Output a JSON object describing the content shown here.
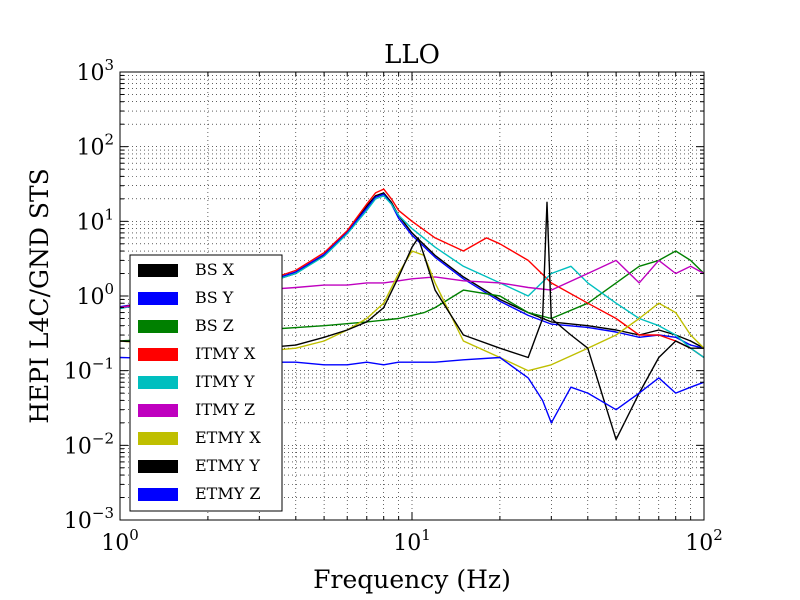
{
  "chart_data": {
    "type": "line",
    "title": "LLO",
    "xlabel": "Frequency (Hz)",
    "ylabel": "HEPI L4C/GND STS",
    "x_scale": "log",
    "y_scale": "log",
    "xlim": [
      1,
      100
    ],
    "ylim": [
      0.001,
      1000
    ],
    "x_ticks": [
      {
        "value": 1,
        "base": "10",
        "exp": "0"
      },
      {
        "value": 10,
        "base": "10",
        "exp": "1"
      },
      {
        "value": 100,
        "base": "10",
        "exp": "2"
      }
    ],
    "y_ticks": [
      {
        "value": 0.001,
        "base": "10",
        "exp": "−3"
      },
      {
        "value": 0.01,
        "base": "10",
        "exp": "−2"
      },
      {
        "value": 0.1,
        "base": "10",
        "exp": "−1"
      },
      {
        "value": 1,
        "base": "10",
        "exp": "0"
      },
      {
        "value": 10,
        "base": "10",
        "exp": "1"
      },
      {
        "value": 100,
        "base": "10",
        "exp": "2"
      },
      {
        "value": 1000,
        "base": "10",
        "exp": "3"
      }
    ],
    "grid": true,
    "legend_position": "lower-left",
    "series": [
      {
        "name": "BS X",
        "color": "#000000",
        "x": [
          1,
          1.5,
          2,
          3,
          4,
          5,
          6,
          7,
          7.5,
          8,
          8.5,
          9,
          10,
          12,
          15,
          20,
          25,
          30,
          40,
          50,
          60,
          70,
          80,
          90,
          100
        ],
        "y": [
          0.7,
          0.9,
          1.1,
          1.4,
          2.0,
          3.5,
          7.0,
          16,
          22,
          24,
          18,
          12,
          7,
          3.5,
          1.8,
          0.9,
          0.6,
          0.45,
          0.4,
          0.35,
          0.3,
          0.35,
          0.3,
          0.25,
          0.2
        ]
      },
      {
        "name": "BS Y",
        "color": "#0000ff",
        "x": [
          1,
          1.5,
          2,
          3,
          4,
          5,
          6,
          7,
          7.5,
          8,
          8.5,
          9,
          10,
          12,
          15,
          20,
          25,
          30,
          40,
          50,
          60,
          70,
          80,
          90,
          100
        ],
        "y": [
          0.72,
          0.92,
          1.15,
          1.45,
          2.1,
          3.6,
          7.2,
          15,
          21,
          23,
          17,
          11,
          6.5,
          3.3,
          1.7,
          0.85,
          0.55,
          0.42,
          0.38,
          0.33,
          0.28,
          0.3,
          0.28,
          0.22,
          0.2
        ]
      },
      {
        "name": "BS Z",
        "color": "#008000",
        "x": [
          1,
          2,
          3,
          5,
          7,
          9,
          10,
          11,
          12,
          15,
          20,
          25,
          30,
          40,
          50,
          60,
          70,
          80,
          90,
          100
        ],
        "y": [
          0.25,
          0.3,
          0.35,
          0.4,
          0.45,
          0.5,
          0.55,
          0.6,
          0.7,
          1.2,
          1.0,
          0.6,
          0.5,
          0.8,
          1.5,
          2.5,
          3.0,
          4.0,
          3.0,
          2.0
        ]
      },
      {
        "name": "ITMY X",
        "color": "#ff0000",
        "x": [
          1,
          1.5,
          2,
          3,
          4,
          5,
          6,
          7,
          7.5,
          8,
          8.5,
          9,
          10,
          12,
          15,
          18,
          20,
          25,
          30,
          40,
          50,
          60,
          70,
          80,
          90,
          100
        ],
        "y": [
          0.7,
          0.95,
          1.2,
          1.5,
          2.2,
          3.8,
          7.5,
          17,
          24,
          27,
          20,
          14,
          10,
          6,
          4,
          6,
          5,
          3,
          1.5,
          0.8,
          0.5,
          0.3,
          0.3,
          0.25,
          0.2,
          0.15
        ]
      },
      {
        "name": "ITMY Y",
        "color": "#00bfbf",
        "x": [
          1,
          1.5,
          2,
          3,
          4,
          5,
          6,
          7,
          7.5,
          8,
          8.5,
          9,
          10,
          12,
          15,
          20,
          25,
          30,
          35,
          40,
          50,
          60,
          70,
          80,
          90,
          100
        ],
        "y": [
          0.68,
          0.9,
          1.1,
          1.4,
          2.0,
          3.4,
          6.8,
          14,
          20,
          22,
          17,
          12,
          8,
          4.5,
          2.5,
          1.5,
          1.0,
          2.0,
          2.5,
          1.5,
          0.8,
          0.5,
          0.4,
          0.3,
          0.2,
          0.15
        ]
      },
      {
        "name": "ITMY Z",
        "color": "#bf00bf",
        "x": [
          1,
          2,
          3,
          4,
          5,
          6,
          7,
          8,
          9,
          10,
          12,
          15,
          20,
          25,
          30,
          40,
          50,
          60,
          70,
          80,
          90,
          100
        ],
        "y": [
          0.7,
          1.0,
          1.2,
          1.3,
          1.4,
          1.4,
          1.5,
          1.5,
          1.6,
          1.7,
          1.8,
          1.6,
          1.5,
          1.3,
          1.2,
          2.0,
          3.0,
          1.5,
          3.0,
          2.0,
          2.5,
          2.0
        ]
      },
      {
        "name": "ETMY X",
        "color": "#bfbf00",
        "x": [
          1,
          2,
          3,
          4,
          5,
          6,
          7,
          8,
          9,
          10,
          11,
          12,
          15,
          20,
          25,
          30,
          40,
          50,
          60,
          70,
          80,
          90,
          100
        ],
        "y": [
          0.25,
          0.2,
          0.18,
          0.2,
          0.25,
          0.35,
          0.5,
          0.8,
          2.0,
          4.0,
          3.5,
          1.5,
          0.25,
          0.15,
          0.1,
          0.12,
          0.2,
          0.3,
          0.5,
          0.8,
          0.6,
          0.3,
          0.2
        ]
      },
      {
        "name": "ETMY Y",
        "color": "#000000",
        "x": [
          1,
          2,
          3,
          4,
          5,
          6,
          7,
          8,
          9,
          10,
          10.5,
          11,
          12,
          15,
          20,
          25,
          28,
          29,
          30,
          35,
          40,
          50,
          60,
          70,
          80,
          90,
          100
        ],
        "y": [
          0.25,
          0.22,
          0.2,
          0.22,
          0.28,
          0.35,
          0.45,
          0.7,
          1.8,
          4.5,
          6.0,
          3.5,
          1.2,
          0.3,
          0.2,
          0.15,
          0.5,
          18,
          0.5,
          0.3,
          0.2,
          0.012,
          0.05,
          0.15,
          0.25,
          0.2,
          0.2
        ]
      },
      {
        "name": "ETMY Z",
        "color": "#0000ff",
        "x": [
          1,
          2,
          3,
          4,
          5,
          6,
          7,
          8,
          9,
          10,
          12,
          15,
          20,
          25,
          28,
          30,
          35,
          40,
          50,
          60,
          70,
          80,
          90,
          100
        ],
        "y": [
          0.15,
          0.14,
          0.13,
          0.13,
          0.12,
          0.12,
          0.13,
          0.12,
          0.13,
          0.13,
          0.13,
          0.14,
          0.15,
          0.08,
          0.04,
          0.02,
          0.06,
          0.05,
          0.03,
          0.05,
          0.08,
          0.05,
          0.06,
          0.07
        ]
      }
    ]
  }
}
